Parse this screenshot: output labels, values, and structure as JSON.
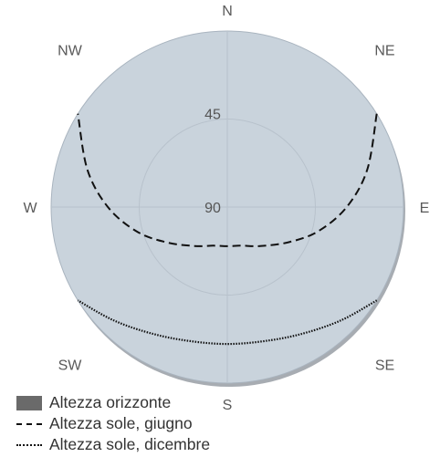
{
  "chart_data": {
    "type": "polar",
    "directions": [
      {
        "label": "N",
        "azimuth": 0
      },
      {
        "label": "NE",
        "azimuth": 45
      },
      {
        "label": "E",
        "azimuth": 90
      },
      {
        "label": "SE",
        "azimuth": 135
      },
      {
        "label": "S",
        "azimuth": 180
      },
      {
        "label": "SW",
        "azimuth": 225
      },
      {
        "label": "W",
        "azimuth": 270
      },
      {
        "label": "NW",
        "azimuth": 315
      }
    ],
    "radial_ticks": [
      {
        "label": "45",
        "value": 45
      },
      {
        "label": "90",
        "value": 90
      }
    ],
    "radial_range": [
      0,
      90
    ],
    "grid": true,
    "series": [
      {
        "name": "Altezza orizzonte",
        "style": "area",
        "color": "#6a6a6a",
        "points": [
          {
            "azimuth": 0,
            "elevation": 0
          },
          {
            "azimuth": 90,
            "elevation": 0
          },
          {
            "azimuth": 180,
            "elevation": 0
          },
          {
            "azimuth": 270,
            "elevation": 0
          },
          {
            "azimuth": 360,
            "elevation": 0
          }
        ]
      },
      {
        "name": "Altezza sole, giugno",
        "style": "dashed",
        "color": "#111111",
        "points": [
          {
            "azimuth": 58,
            "elevation": 0
          },
          {
            "azimuth": 75,
            "elevation": 16
          },
          {
            "azimuth": 90,
            "elevation": 29
          },
          {
            "azimuth": 105,
            "elevation": 42
          },
          {
            "azimuth": 120,
            "elevation": 54
          },
          {
            "azimuth": 140,
            "elevation": 64
          },
          {
            "azimuth": 160,
            "elevation": 69
          },
          {
            "azimuth": 180,
            "elevation": 70
          },
          {
            "azimuth": 200,
            "elevation": 69
          },
          {
            "azimuth": 220,
            "elevation": 64
          },
          {
            "azimuth": 240,
            "elevation": 54
          },
          {
            "azimuth": 255,
            "elevation": 42
          },
          {
            "azimuth": 270,
            "elevation": 29
          },
          {
            "azimuth": 285,
            "elevation": 16
          },
          {
            "azimuth": 302,
            "elevation": 0
          }
        ]
      },
      {
        "name": "Altezza sole, dicembre",
        "style": "dotted",
        "color": "#111111",
        "points": [
          {
            "azimuth": 122,
            "elevation": 0
          },
          {
            "azimuth": 135,
            "elevation": 8
          },
          {
            "azimuth": 150,
            "elevation": 15
          },
          {
            "azimuth": 165,
            "elevation": 19
          },
          {
            "azimuth": 180,
            "elevation": 20
          },
          {
            "azimuth": 195,
            "elevation": 19
          },
          {
            "azimuth": 210,
            "elevation": 15
          },
          {
            "azimuth": 225,
            "elevation": 8
          },
          {
            "azimuth": 238,
            "elevation": 0
          }
        ]
      }
    ],
    "legend_position": "bottom-left"
  },
  "colors": {
    "plot_background": "#c9d3dc",
    "grid": "#b8c2cc",
    "outline": "#a9b4bf"
  }
}
